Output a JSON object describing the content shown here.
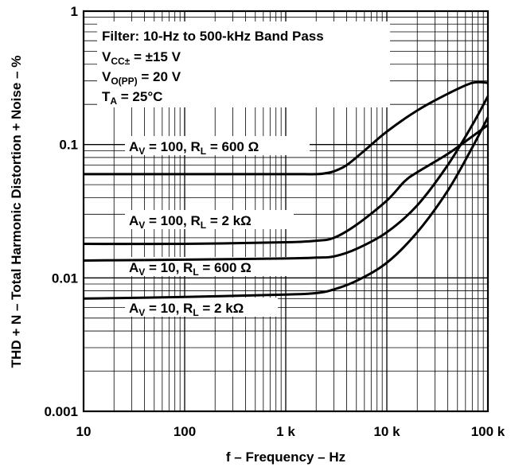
{
  "chart_data": {
    "type": "line",
    "xlabel": "f – Frequency – Hz",
    "ylabel": "THD + N – Total Harmonic Distortion + Noise – %",
    "x_scale": "log",
    "y_scale": "log",
    "xlim": [
      10,
      100000
    ],
    "ylim": [
      0.001,
      1
    ],
    "grid": true,
    "x_ticks": [
      {
        "value": 10,
        "label": "10"
      },
      {
        "value": 100,
        "label": "100"
      },
      {
        "value": 1000,
        "label": "1 k"
      },
      {
        "value": 10000,
        "label": "10 k"
      },
      {
        "value": 100000,
        "label": "100 k"
      }
    ],
    "y_ticks": [
      {
        "value": 1,
        "label": "1"
      },
      {
        "value": 0.1,
        "label": "0.1"
      },
      {
        "value": 0.01,
        "label": "0.01"
      },
      {
        "value": 0.001,
        "label": "0.001"
      }
    ],
    "annotation": {
      "line1": "Filter: 10-Hz to 500-kHz Band Pass",
      "line2_main": "V",
      "line2_sub": "CC±",
      "line2_rest": " = ±15 V",
      "line3_main": "V",
      "line3_sub": "O(PP)",
      "line3_rest": " = 20 V",
      "line4_main": "T",
      "line4_sub": "A",
      "line4_rest": " = 25°C"
    },
    "series": [
      {
        "label_a": "A",
        "label_a_sub": "V",
        "label_b": " = 100, R",
        "label_b_sub": "L",
        "label_c": " = 600 Ω",
        "x": [
          10,
          100,
          1000,
          2000,
          2500,
          3000,
          4000,
          6000,
          10000,
          20000,
          40000,
          70000,
          100000
        ],
        "y": [
          0.06,
          0.06,
          0.06,
          0.06,
          0.061,
          0.063,
          0.07,
          0.09,
          0.125,
          0.18,
          0.24,
          0.29,
          0.29
        ]
      },
      {
        "label_a": "A",
        "label_a_sub": "V",
        "label_b": " = 100, R",
        "label_b_sub": "L",
        "label_c": " = 2 kΩ",
        "x": [
          10,
          100,
          1000,
          2000,
          3000,
          5000,
          10000,
          15000,
          20000,
          40000,
          70000,
          100000
        ],
        "y": [
          0.018,
          0.018,
          0.0185,
          0.019,
          0.02,
          0.025,
          0.038,
          0.053,
          0.062,
          0.085,
          0.115,
          0.14
        ]
      },
      {
        "label_a": "A",
        "label_a_sub": "V",
        "label_b": " = 10, R",
        "label_b_sub": "L",
        "label_c": " = 600 Ω",
        "x": [
          10,
          100,
          1000,
          2000,
          3000,
          5000,
          10000,
          20000,
          40000,
          70000,
          100000
        ],
        "y": [
          0.0135,
          0.0137,
          0.014,
          0.0142,
          0.0145,
          0.0165,
          0.022,
          0.035,
          0.07,
          0.14,
          0.23
        ]
      },
      {
        "label_a": "A",
        "label_a_sub": "V",
        "label_b": " = 10, R",
        "label_b_sub": "L",
        "label_c": " = 2 kΩ",
        "x": [
          10,
          100,
          1000,
          2000,
          3000,
          5000,
          10000,
          20000,
          40000,
          70000,
          100000
        ],
        "y": [
          0.007,
          0.0072,
          0.0075,
          0.0077,
          0.0082,
          0.0095,
          0.013,
          0.022,
          0.045,
          0.095,
          0.16
        ]
      }
    ]
  }
}
